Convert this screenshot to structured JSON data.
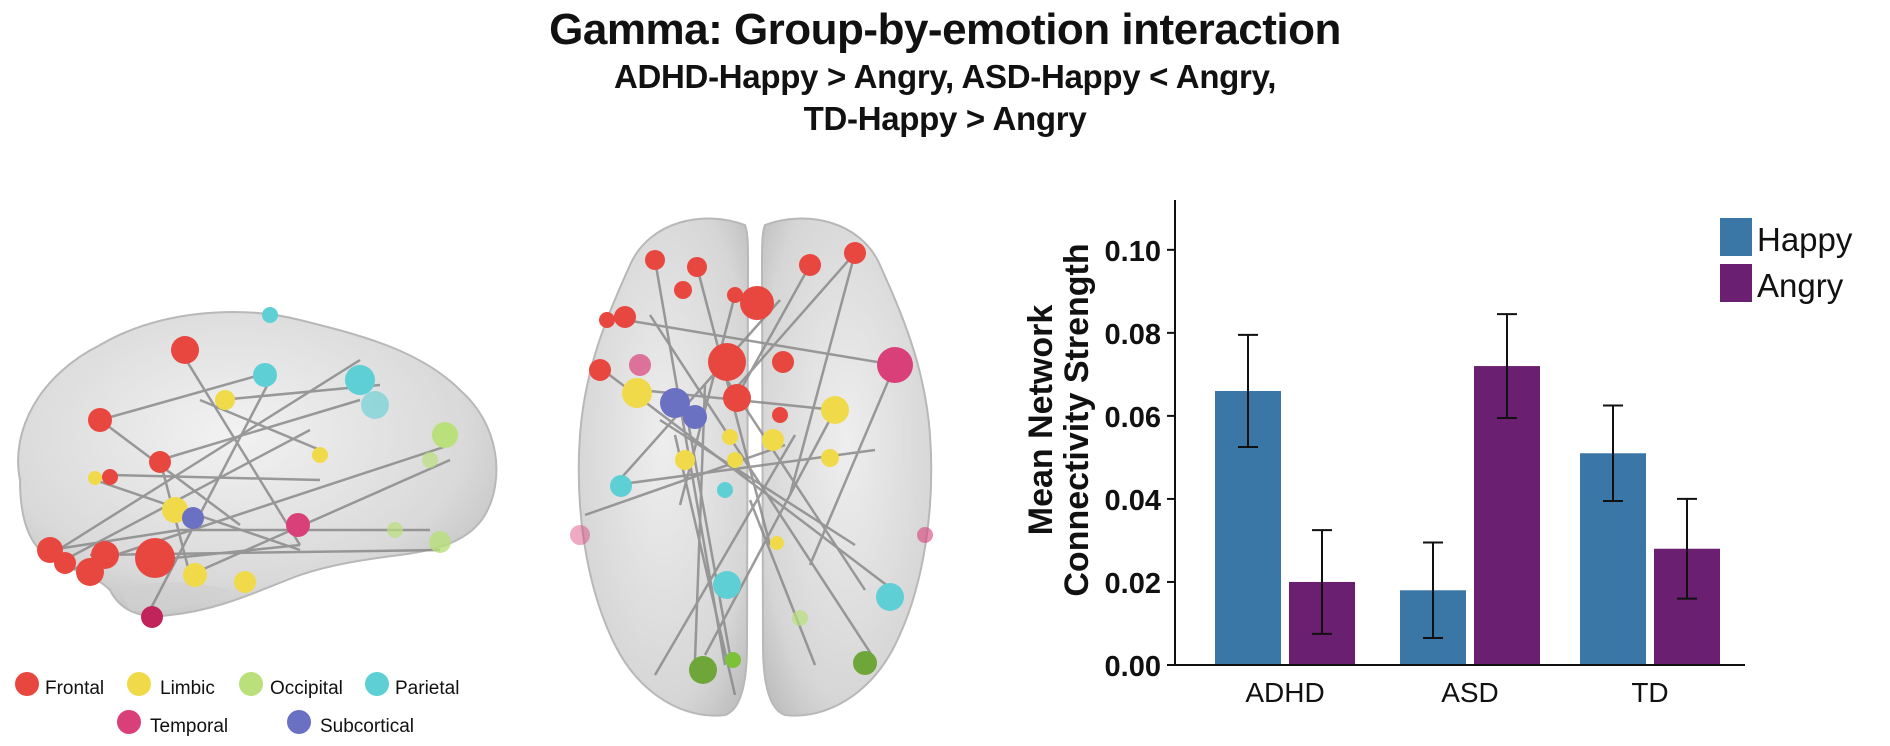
{
  "figure": {
    "title": "Gamma: Group-by-emotion interaction",
    "subtitle_line1": "ADHD-Happy > Angry, ASD-Happy < Angry,",
    "subtitle_line2": "TD-Happy > Angry"
  },
  "brain_legend": [
    {
      "label": "Frontal",
      "color": "#e8473f"
    },
    {
      "label": "Limbic",
      "color": "#f0da4a"
    },
    {
      "label": "Occipital",
      "color": "#b9e07a"
    },
    {
      "label": "Parietal",
      "color": "#5fcfd6"
    },
    {
      "label": "Temporal",
      "color": "#d9407a"
    },
    {
      "label": "Subcortical",
      "color": "#6a70c2"
    }
  ],
  "chart_data": {
    "type": "bar",
    "categories": [
      "ADHD",
      "ASD",
      "TD"
    ],
    "series": [
      {
        "name": "Happy",
        "color": "#3a77a6",
        "values": [
          0.066,
          0.018,
          0.051
        ],
        "error": [
          0.0135,
          0.0115,
          0.0115
        ]
      },
      {
        "name": "Angry",
        "color": "#6a1f70",
        "values": [
          0.02,
          0.072,
          0.028
        ],
        "error": [
          0.0125,
          0.0125,
          0.012
        ]
      }
    ],
    "ylabel": "Mean Network Connectivity Strength",
    "xlabel": "",
    "ylim": [
      0,
      0.112
    ],
    "yticks": [
      "0.00",
      "0.02",
      "0.04",
      "0.06",
      "0.08",
      "0.10"
    ],
    "ytick_values": [
      0,
      0.02,
      0.04,
      0.06,
      0.08,
      0.1
    ],
    "legend_position": "top-right",
    "grid": false
  }
}
